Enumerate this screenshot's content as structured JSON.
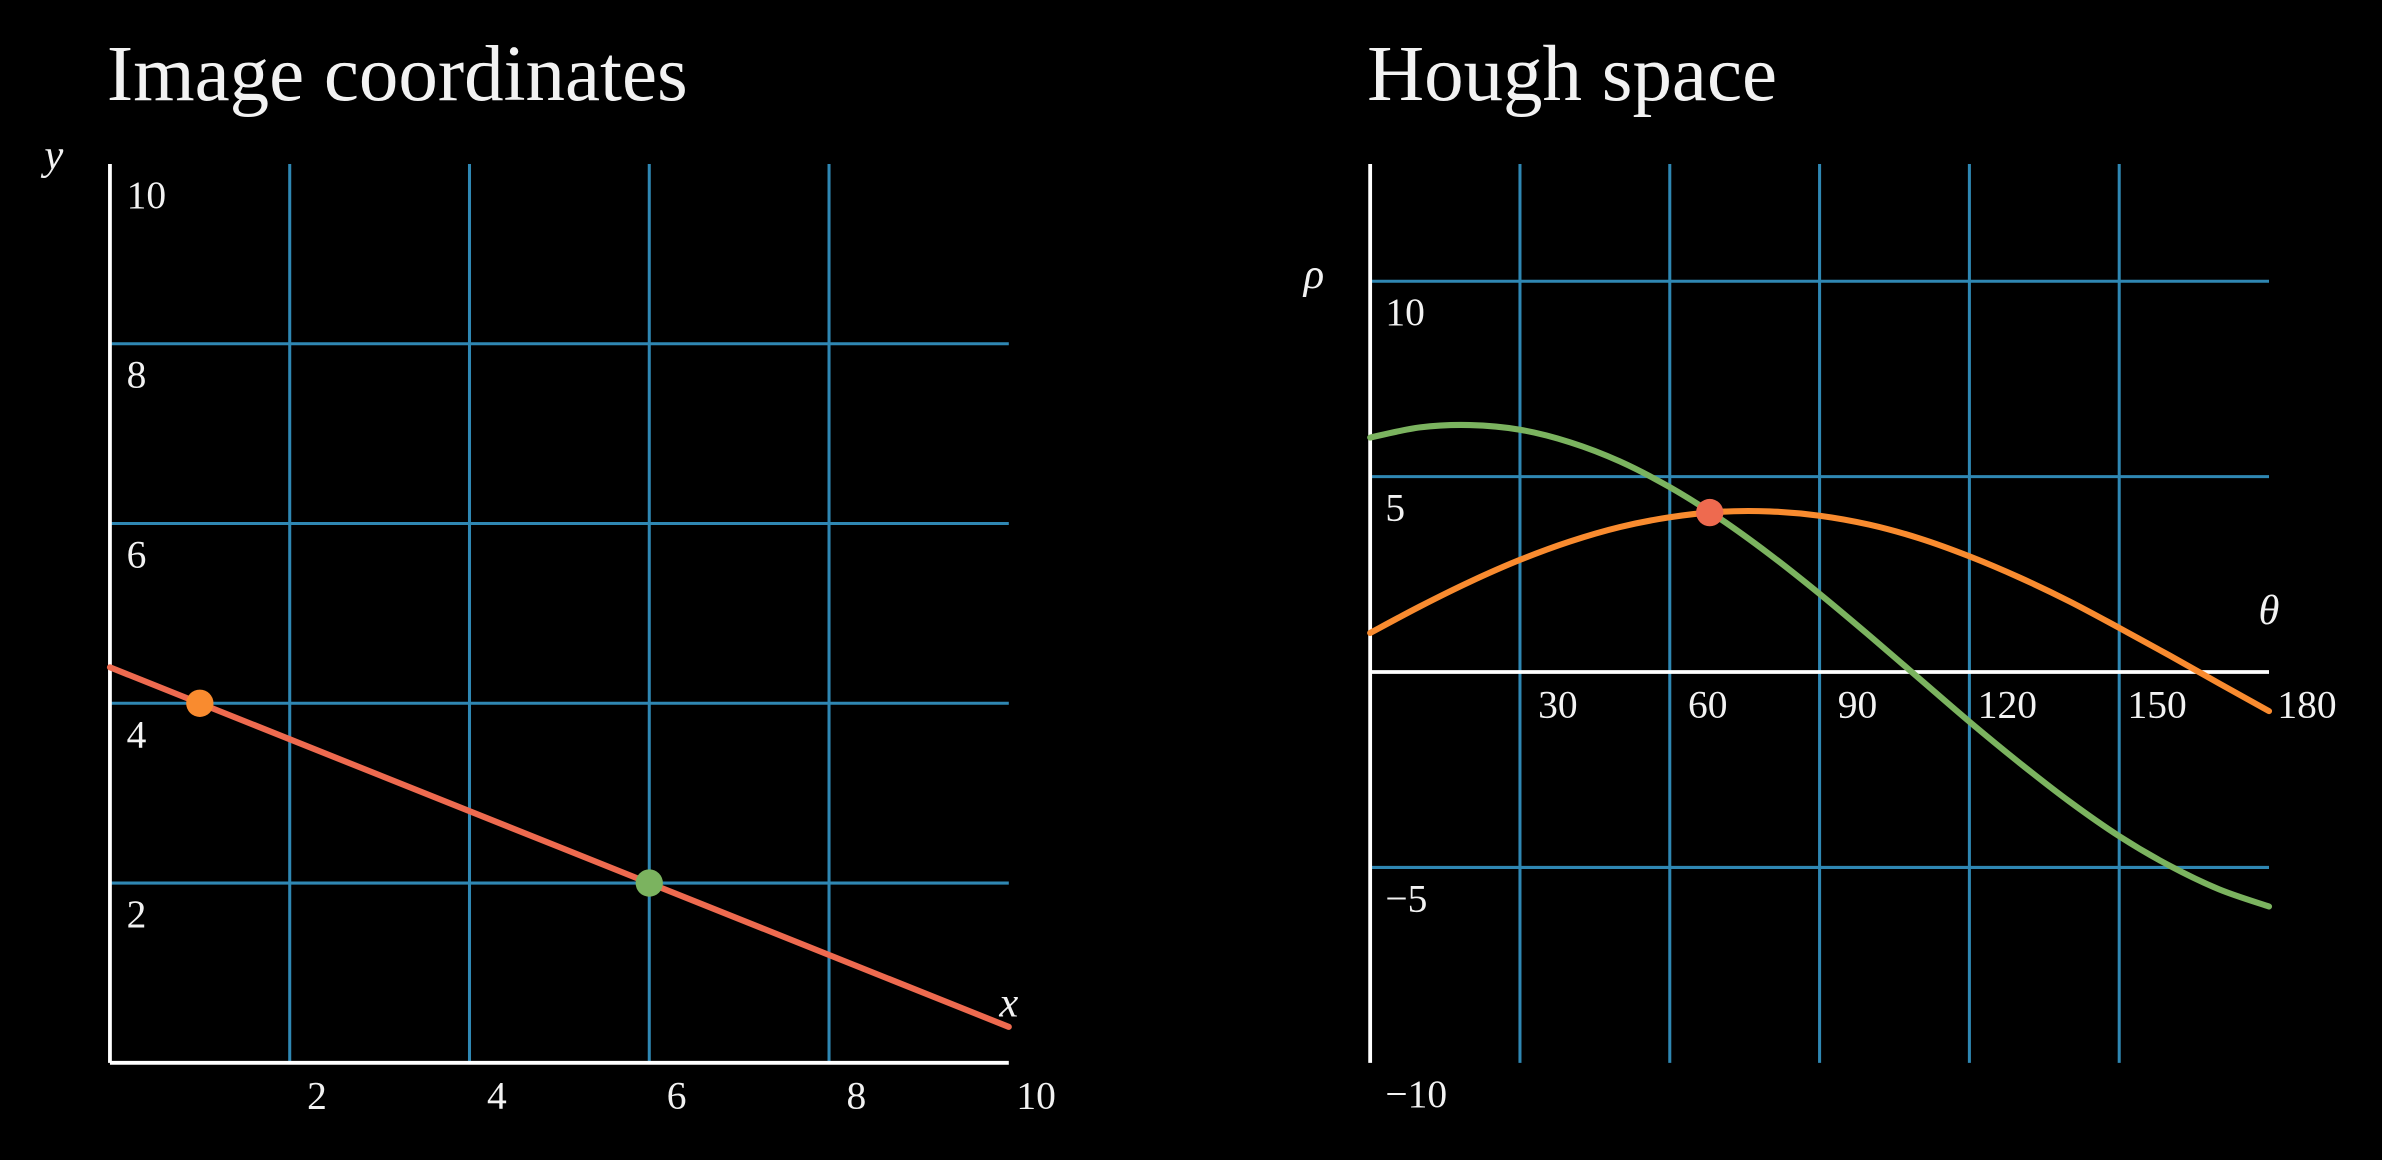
{
  "chart_data": [
    {
      "type": "line",
      "title": "Image coordinates",
      "x_label": "x",
      "y_label": "y",
      "xlim": [
        0,
        10
      ],
      "ylim": [
        0,
        10
      ],
      "xticks": [
        2,
        4,
        6,
        8,
        10
      ],
      "yticks": [
        2,
        4,
        6,
        8,
        10
      ],
      "grid": true,
      "grid_color": "#2f87b3",
      "axis_color": "#ffffff",
      "series": [
        {
          "type": "line",
          "color": "#ee6a4f",
          "x": [
            0,
            10
          ],
          "values": [
            4.4,
            0.4
          ]
        },
        {
          "type": "scatter",
          "color": "#f98b2f",
          "x": [
            1
          ],
          "values": [
            4
          ]
        },
        {
          "type": "scatter",
          "color": "#7bb35f",
          "x": [
            6
          ],
          "values": [
            2
          ]
        }
      ]
    },
    {
      "type": "line",
      "title": "Hough space",
      "x_label": "θ",
      "y_label": "ρ",
      "xlim": [
        0,
        180
      ],
      "ylim": [
        -10,
        13
      ],
      "xticks": [
        30,
        60,
        90,
        120,
        150,
        180
      ],
      "yticks": [
        {
          "value": -10,
          "label": "−10"
        },
        {
          "value": -5,
          "label": "−5"
        },
        5,
        10
      ],
      "grid": true,
      "grid_color": "#2f87b3",
      "axis_color": "#ffffff",
      "series": [
        {
          "type": "line",
          "color": "#f98b2f",
          "x": [
            0,
            10,
            20,
            30,
            40,
            50,
            60,
            70,
            80,
            90,
            100,
            110,
            120,
            130,
            140,
            150,
            160,
            170,
            180
          ],
          "values": [
            1,
            1.68,
            2.31,
            2.87,
            3.34,
            3.71,
            3.96,
            4.1,
            4.11,
            4,
            3.77,
            3.42,
            2.96,
            2.42,
            1.81,
            1.13,
            0.43,
            -0.29,
            -1
          ]
        },
        {
          "type": "line",
          "color": "#7bb35f",
          "x": [
            0,
            10,
            20,
            30,
            40,
            50,
            60,
            70,
            80,
            90,
            100,
            110,
            120,
            130,
            140,
            150,
            160,
            170,
            180
          ],
          "values": [
            6,
            6.26,
            6.32,
            6.2,
            5.88,
            5.39,
            4.73,
            3.93,
            3.01,
            2,
            0.93,
            -0.17,
            -1.27,
            -2.32,
            -3.31,
            -4.2,
            -4.95,
            -5.56,
            -6
          ]
        },
        {
          "type": "scatter",
          "color": "#ee6a4f",
          "x": [
            68
          ],
          "values": [
            4.08
          ]
        }
      ]
    }
  ]
}
